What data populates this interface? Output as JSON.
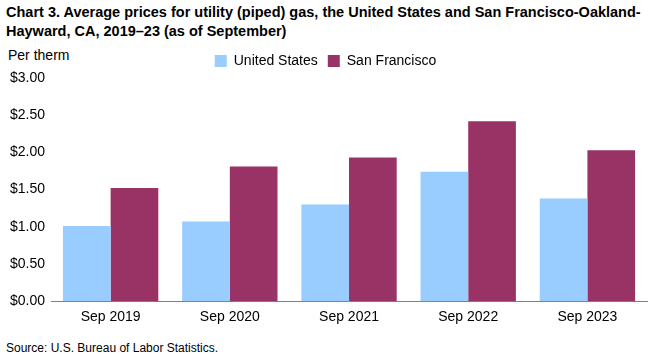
{
  "chart_data": {
    "type": "bar",
    "title": "Chart 3. Average prices for utility (piped) gas, the United States and San Francisco-Oakland-Hayward, CA, 2019–23 (as of September)",
    "ylabel": "Per therm",
    "source": "Source: U.S. Bureau of Labor Statistics.",
    "categories": [
      "Sep 2019",
      "Sep 2020",
      "Sep 2021",
      "Sep 2022",
      "Sep 2023"
    ],
    "series": [
      {
        "name": "United States",
        "color": "#99ccff",
        "values": [
          1.01,
          1.07,
          1.3,
          1.74,
          1.38
        ]
      },
      {
        "name": "San Francisco",
        "color": "#993366",
        "values": [
          1.52,
          1.81,
          1.93,
          2.42,
          2.03
        ]
      }
    ],
    "ylim": [
      0,
      3
    ],
    "yticks": [
      {
        "value": 0,
        "label": "$0.00"
      },
      {
        "value": 0.5,
        "label": "$0.50"
      },
      {
        "value": 1,
        "label": "$1.00"
      },
      {
        "value": 1.5,
        "label": "$1.50"
      },
      {
        "value": 2,
        "label": "$2.00"
      },
      {
        "value": 2.5,
        "label": "$2.50"
      },
      {
        "value": 3,
        "label": "$3.00"
      }
    ],
    "grid": false,
    "legend": "top"
  }
}
